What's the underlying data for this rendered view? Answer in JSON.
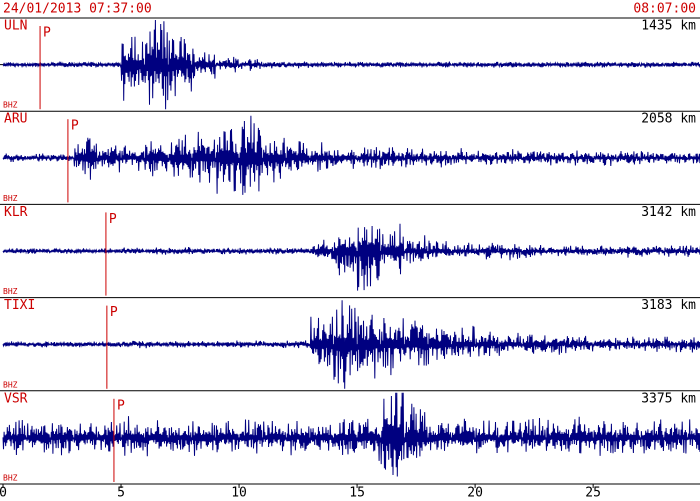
{
  "chart_data": {
    "type": "seismogram",
    "title": "24/01/2013 07:37:00",
    "end_label": "08:07:00",
    "xlim": [
      0,
      29.4
    ],
    "xticks": [
      0,
      5,
      10,
      15,
      20,
      25
    ],
    "x": [
      0,
      1,
      2,
      3,
      4,
      5,
      6,
      7,
      8,
      9,
      10,
      11,
      12,
      13,
      14,
      15,
      16,
      17,
      18,
      19,
      20,
      21,
      22,
      23,
      24,
      25,
      26,
      27,
      28,
      29
    ],
    "series": [
      {
        "name": "ULN",
        "distance": "1435 km",
        "channel": "BHZ",
        "phase": "P",
        "p_arrival": 1.57,
        "color": "#000080",
        "values": [
          0.04,
          0.04,
          0.05,
          0.05,
          0.05,
          0.6,
          0.85,
          0.55,
          0.3,
          0.15,
          0.1,
          0.07,
          0.06,
          0.05,
          0.05,
          0.05,
          0.05,
          0.05,
          0.05,
          0.05,
          0.05,
          0.05,
          0.05,
          0.05,
          0.05,
          0.05,
          0.05,
          0.05,
          0.05,
          0.05
        ]
      },
      {
        "name": "ARU",
        "distance": "2058 km",
        "channel": "BHZ",
        "phase": "P",
        "p_arrival": 2.75,
        "color": "#000080",
        "values": [
          0.07,
          0.07,
          0.07,
          0.4,
          0.25,
          0.22,
          0.35,
          0.4,
          0.45,
          0.6,
          0.75,
          0.4,
          0.3,
          0.25,
          0.2,
          0.2,
          0.2,
          0.18,
          0.15,
          0.15,
          0.15,
          0.15,
          0.13,
          0.13,
          0.13,
          0.13,
          0.13,
          0.12,
          0.12,
          0.12
        ]
      },
      {
        "name": "KLR",
        "distance": "3142 km",
        "channel": "BHZ",
        "phase": "P",
        "p_arrival": 4.36,
        "color": "#000080",
        "values": [
          0.05,
          0.05,
          0.05,
          0.05,
          0.05,
          0.06,
          0.06,
          0.06,
          0.06,
          0.06,
          0.06,
          0.06,
          0.07,
          0.2,
          0.4,
          0.8,
          0.5,
          0.25,
          0.2,
          0.15,
          0.15,
          0.15,
          0.12,
          0.1,
          0.1,
          0.1,
          0.1,
          0.1,
          0.1,
          0.1
        ]
      },
      {
        "name": "TIXI",
        "distance": "3183 km",
        "channel": "BHZ",
        "phase": "P",
        "p_arrival": 4.4,
        "color": "#000080",
        "values": [
          0.05,
          0.05,
          0.05,
          0.05,
          0.05,
          0.06,
          0.06,
          0.06,
          0.06,
          0.06,
          0.06,
          0.06,
          0.07,
          0.5,
          0.85,
          0.6,
          0.55,
          0.45,
          0.35,
          0.3,
          0.22,
          0.2,
          0.2,
          0.18,
          0.15,
          0.15,
          0.15,
          0.15,
          0.15,
          0.15
        ]
      },
      {
        "name": "VSR",
        "distance": "3375 km",
        "channel": "BHZ",
        "phase": "P",
        "p_arrival": 4.7,
        "color": "#000080",
        "values": [
          0.3,
          0.3,
          0.3,
          0.3,
          0.3,
          0.32,
          0.3,
          0.3,
          0.3,
          0.3,
          0.3,
          0.3,
          0.3,
          0.3,
          0.35,
          0.4,
          0.9,
          0.6,
          0.35,
          0.3,
          0.3,
          0.3,
          0.3,
          0.3,
          0.35,
          0.3,
          0.3,
          0.3,
          0.3,
          0.3
        ]
      }
    ]
  }
}
